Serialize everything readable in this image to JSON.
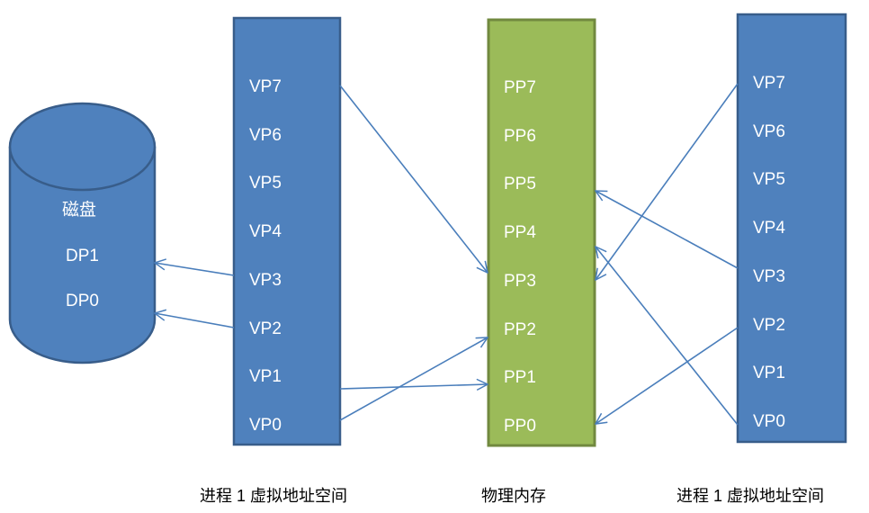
{
  "colors": {
    "process_fill": "#4f81bd",
    "process_stroke": "#385d8a",
    "physical_fill": "#9bbb59",
    "physical_stroke": "#71893f",
    "arrow": "#4a7ebb"
  },
  "disk": {
    "title": "磁盘",
    "pages": [
      "DP1",
      "DP0"
    ]
  },
  "process_left": {
    "caption": "进程 1 虚拟地址空间",
    "pages": [
      "VP7",
      "VP6",
      "VP5",
      "VP4",
      "VP3",
      "VP2",
      "VP1",
      "VP0"
    ]
  },
  "physical": {
    "caption": "物理内存",
    "pages": [
      "PP7",
      "PP6",
      "PP5",
      "PP4",
      "PP3",
      "PP2",
      "PP1",
      "PP0"
    ]
  },
  "process_right": {
    "caption": "进程 1 虚拟地址空间",
    "pages": [
      "VP7",
      "VP6",
      "VP5",
      "VP4",
      "VP3",
      "VP2",
      "VP1",
      "VP0"
    ]
  },
  "mappings": [
    {
      "from": "left.VP7",
      "to": "PP3"
    },
    {
      "from": "left.VP3",
      "to": "DP1"
    },
    {
      "from": "left.VP2",
      "to": "DP0"
    },
    {
      "from": "left.VP1",
      "to": "PP1"
    },
    {
      "from": "left.VP0",
      "to": "PP2"
    },
    {
      "from": "right.VP7",
      "to": "PP3"
    },
    {
      "from": "right.VP3",
      "to": "PP5"
    },
    {
      "from": "right.VP2",
      "to": "PP0"
    },
    {
      "from": "right.VP0",
      "to": "PP4"
    }
  ]
}
